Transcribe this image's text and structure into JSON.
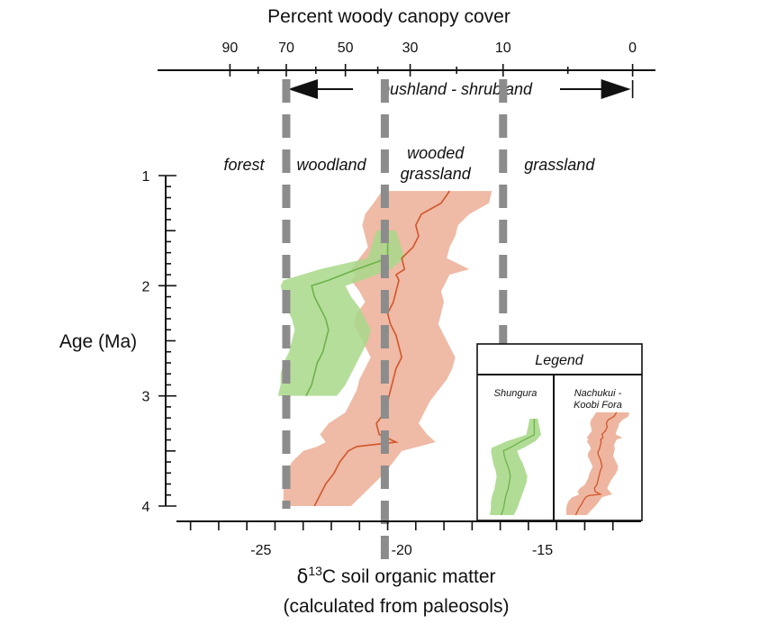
{
  "chart_data": {
    "type": "area",
    "x_axis": {
      "label": "δ13C soil organic matter",
      "label_line2": "(calculated from paleosols)",
      "range": [
        -28,
        -11.5
      ],
      "ticks": [
        -25,
        -20,
        -15
      ],
      "tick_labels": [
        "-25",
        "-20",
        "-15"
      ]
    },
    "top_axis": {
      "label": "Percent woody canopy cover",
      "ticks": [
        90,
        70,
        50,
        30,
        10,
        0
      ],
      "tick_labels": [
        "90",
        "70",
        "50",
        "30",
        "10",
        "0"
      ],
      "tick_positions_d13c": [
        -26.1,
        -24.1,
        -22,
        -19.7,
        -16.4,
        -11.8
      ]
    },
    "y_axis": {
      "label": "Age (Ma)",
      "range": [
        1,
        4
      ],
      "reversed": true,
      "ticks": [
        1,
        2,
        3,
        4
      ],
      "tick_labels": [
        "1",
        "2",
        "3",
        "4"
      ]
    },
    "annotation": {
      "text": "bushland - shrubland",
      "from_d13c": -24.1,
      "to_d13c": -11.8
    },
    "zones": [
      {
        "label": "forest",
        "x": -25.6
      },
      {
        "label": "woodland",
        "x": -22.5
      },
      {
        "label": "wooded",
        "label_line2": "grassland",
        "x": -18.8
      },
      {
        "label": "grassland",
        "x": -14.4
      }
    ],
    "boundaries": [
      -24.1,
      -20.6,
      -16.4
    ],
    "series": [
      {
        "name": "Shungura",
        "color": "#6db34a",
        "fill": "#a8d88a",
        "age": [
          1.5,
          1.75,
          1.85,
          1.95,
          2.0,
          2.1,
          2.2,
          2.3,
          2.4,
          2.5,
          2.6,
          2.7,
          2.8,
          2.9,
          3.0
        ],
        "mean": [
          -20.5,
          -20.5,
          -21.6,
          -22.6,
          -23.2,
          -23.1,
          -22.9,
          -22.7,
          -22.6,
          -22.7,
          -22.8,
          -23.0,
          -23.1,
          -23.2,
          -23.4
        ],
        "low": [
          -20.9,
          -21.2,
          -22.9,
          -24.2,
          -24.3,
          -24.2,
          -24.1,
          -23.9,
          -23.8,
          -23.9,
          -24.0,
          -24.2,
          -24.3,
          -24.3,
          -24.4
        ],
        "high": [
          -20.2,
          -19.9,
          -20.4,
          -21.4,
          -22.0,
          -21.8,
          -21.5,
          -21.3,
          -21.1,
          -21.2,
          -21.4,
          -21.6,
          -21.8,
          -22.0,
          -22.3
        ]
      },
      {
        "name": "Nachukui - Koobi Fora",
        "color": "#d0562a",
        "fill": "#ecae96",
        "age": [
          1.14,
          1.25,
          1.35,
          1.45,
          1.55,
          1.65,
          1.75,
          1.85,
          1.9,
          1.95,
          2.05,
          2.15,
          2.25,
          2.35,
          2.45,
          2.55,
          2.65,
          2.75,
          2.85,
          2.95,
          3.05,
          3.15,
          3.25,
          3.35,
          3.42,
          3.46,
          3.5,
          3.6,
          3.7,
          3.8,
          3.9,
          4.0
        ],
        "mean": [
          -18.3,
          -18.6,
          -19.3,
          -19.5,
          -19.4,
          -19.6,
          -20.0,
          -19.9,
          -20.2,
          -20.1,
          -20.2,
          -20.3,
          -20.5,
          -20.4,
          -20.2,
          -20.1,
          -20.0,
          -20.2,
          -20.3,
          -20.4,
          -20.5,
          -20.6,
          -20.9,
          -20.8,
          -20.2,
          -21.6,
          -21.9,
          -22.2,
          -22.4,
          -22.7,
          -22.9,
          -23.1
        ],
        "low": [
          -20.7,
          -21.0,
          -21.3,
          -21.4,
          -21.3,
          -21.2,
          -21.5,
          -21.8,
          -21.6,
          -21.8,
          -21.5,
          -21.3,
          -21.6,
          -21.7,
          -21.5,
          -21.3,
          -21.1,
          -21.3,
          -21.5,
          -21.6,
          -21.8,
          -22.0,
          -22.6,
          -22.9,
          -22.7,
          -23.0,
          -23.5,
          -23.9,
          -24.1,
          -24.2,
          -24.2,
          -24.2
        ],
        "high": [
          -16.8,
          -16.9,
          -17.6,
          -18.0,
          -18.1,
          -18.3,
          -18.4,
          -17.6,
          -18.3,
          -18.4,
          -18.6,
          -18.5,
          -18.6,
          -18.7,
          -18.5,
          -18.3,
          -18.1,
          -18.2,
          -18.4,
          -18.7,
          -19.0,
          -19.2,
          -19.4,
          -19.1,
          -18.8,
          -19.4,
          -20.0,
          -20.3,
          -20.6,
          -21.0,
          -21.4,
          -21.8
        ]
      }
    ],
    "legend": {
      "title": "Legend",
      "entries": [
        "Shungura",
        "Nachukui - Koobi Fora"
      ],
      "entry_lines": [
        [
          "Shungura"
        ],
        [
          "Nachukui -",
          "Koobi Fora"
        ]
      ],
      "placement": "bottom-right"
    }
  }
}
